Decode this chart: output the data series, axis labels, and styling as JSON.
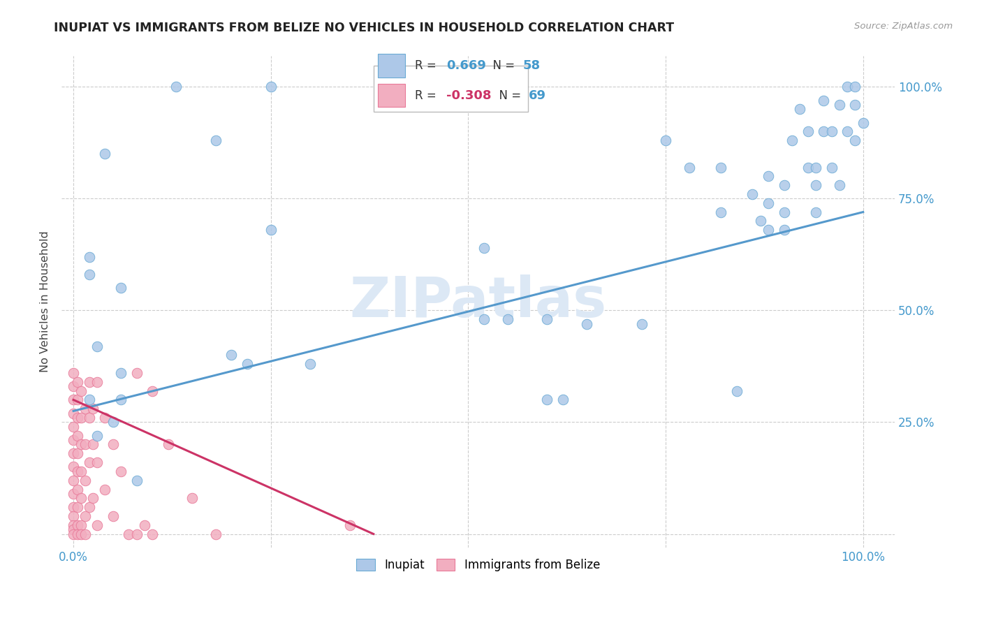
{
  "title": "INUPIAT VS IMMIGRANTS FROM BELIZE NO VEHICLES IN HOUSEHOLD CORRELATION CHART",
  "source": "Source: ZipAtlas.com",
  "ylabel": "No Vehicles in Household",
  "ytick_labels": [
    "25.0%",
    "50.0%",
    "75.0%",
    "100.0%"
  ],
  "ytick_values": [
    0.25,
    0.5,
    0.75,
    1.0
  ],
  "right_ytick_labels": [
    "25.0%",
    "50.0%",
    "75.0%",
    "100.0%"
  ],
  "blue_color": "#adc8e8",
  "pink_color": "#f2aec0",
  "blue_edge_color": "#6aaad4",
  "pink_edge_color": "#e87898",
  "blue_line_color": "#5599cc",
  "pink_line_color": "#cc3366",
  "blue_scatter": [
    [
      0.02,
      0.62
    ],
    [
      0.04,
      0.85
    ],
    [
      0.13,
      1.0
    ],
    [
      0.25,
      1.0
    ],
    [
      0.18,
      0.88
    ],
    [
      0.02,
      0.58
    ],
    [
      0.03,
      0.42
    ],
    [
      0.06,
      0.55
    ],
    [
      0.06,
      0.36
    ],
    [
      0.06,
      0.3
    ],
    [
      0.02,
      0.3
    ],
    [
      0.03,
      0.22
    ],
    [
      0.05,
      0.25
    ],
    [
      0.08,
      0.12
    ],
    [
      0.2,
      0.4
    ],
    [
      0.22,
      0.38
    ],
    [
      0.25,
      0.68
    ],
    [
      0.3,
      0.38
    ],
    [
      0.52,
      0.64
    ],
    [
      0.52,
      0.48
    ],
    [
      0.55,
      0.48
    ],
    [
      0.6,
      0.48
    ],
    [
      0.6,
      0.3
    ],
    [
      0.62,
      0.3
    ],
    [
      0.65,
      0.47
    ],
    [
      0.72,
      0.47
    ],
    [
      0.75,
      0.88
    ],
    [
      0.78,
      0.82
    ],
    [
      0.82,
      0.72
    ],
    [
      0.82,
      0.82
    ],
    [
      0.84,
      0.32
    ],
    [
      0.86,
      0.76
    ],
    [
      0.87,
      0.7
    ],
    [
      0.88,
      0.8
    ],
    [
      0.88,
      0.74
    ],
    [
      0.88,
      0.68
    ],
    [
      0.9,
      0.78
    ],
    [
      0.9,
      0.72
    ],
    [
      0.9,
      0.68
    ],
    [
      0.91,
      0.88
    ],
    [
      0.92,
      0.95
    ],
    [
      0.93,
      0.9
    ],
    [
      0.93,
      0.82
    ],
    [
      0.94,
      0.72
    ],
    [
      0.94,
      0.82
    ],
    [
      0.94,
      0.78
    ],
    [
      0.95,
      0.97
    ],
    [
      0.95,
      0.9
    ],
    [
      0.96,
      0.82
    ],
    [
      0.96,
      0.9
    ],
    [
      0.97,
      0.78
    ],
    [
      0.97,
      0.96
    ],
    [
      0.98,
      1.0
    ],
    [
      0.98,
      0.9
    ],
    [
      0.99,
      1.0
    ],
    [
      0.99,
      0.96
    ],
    [
      0.99,
      0.88
    ],
    [
      1.0,
      0.92
    ]
  ],
  "pink_scatter": [
    [
      0.0,
      0.36
    ],
    [
      0.0,
      0.33
    ],
    [
      0.0,
      0.3
    ],
    [
      0.0,
      0.27
    ],
    [
      0.0,
      0.24
    ],
    [
      0.0,
      0.21
    ],
    [
      0.0,
      0.18
    ],
    [
      0.0,
      0.15
    ],
    [
      0.0,
      0.12
    ],
    [
      0.0,
      0.09
    ],
    [
      0.0,
      0.06
    ],
    [
      0.0,
      0.04
    ],
    [
      0.0,
      0.02
    ],
    [
      0.0,
      0.01
    ],
    [
      0.0,
      0.0
    ],
    [
      0.005,
      0.34
    ],
    [
      0.005,
      0.3
    ],
    [
      0.005,
      0.26
    ],
    [
      0.005,
      0.22
    ],
    [
      0.005,
      0.18
    ],
    [
      0.005,
      0.14
    ],
    [
      0.005,
      0.1
    ],
    [
      0.005,
      0.06
    ],
    [
      0.005,
      0.02
    ],
    [
      0.005,
      0.0
    ],
    [
      0.01,
      0.32
    ],
    [
      0.01,
      0.26
    ],
    [
      0.01,
      0.2
    ],
    [
      0.01,
      0.14
    ],
    [
      0.01,
      0.08
    ],
    [
      0.01,
      0.02
    ],
    [
      0.01,
      0.0
    ],
    [
      0.015,
      0.28
    ],
    [
      0.015,
      0.2
    ],
    [
      0.015,
      0.12
    ],
    [
      0.015,
      0.04
    ],
    [
      0.015,
      0.0
    ],
    [
      0.02,
      0.26
    ],
    [
      0.02,
      0.16
    ],
    [
      0.02,
      0.06
    ],
    [
      0.02,
      0.34
    ],
    [
      0.025,
      0.2
    ],
    [
      0.025,
      0.08
    ],
    [
      0.025,
      0.28
    ],
    [
      0.03,
      0.16
    ],
    [
      0.03,
      0.02
    ],
    [
      0.03,
      0.34
    ],
    [
      0.04,
      0.1
    ],
    [
      0.04,
      0.26
    ],
    [
      0.05,
      0.04
    ],
    [
      0.05,
      0.2
    ],
    [
      0.06,
      0.14
    ],
    [
      0.07,
      0.0
    ],
    [
      0.08,
      0.36
    ],
    [
      0.08,
      0.0
    ],
    [
      0.09,
      0.02
    ],
    [
      0.1,
      0.32
    ],
    [
      0.1,
      0.0
    ],
    [
      0.12,
      0.2
    ],
    [
      0.15,
      0.08
    ],
    [
      0.18,
      0.0
    ],
    [
      0.35,
      0.02
    ]
  ],
  "blue_trendline_x": [
    0.0,
    1.0
  ],
  "blue_trendline_y": [
    0.275,
    0.72
  ],
  "pink_trendline_x": [
    0.0,
    0.38
  ],
  "pink_trendline_y": [
    0.3,
    0.0
  ],
  "xlim": [
    -0.015,
    1.04
  ],
  "ylim": [
    -0.03,
    1.07
  ]
}
